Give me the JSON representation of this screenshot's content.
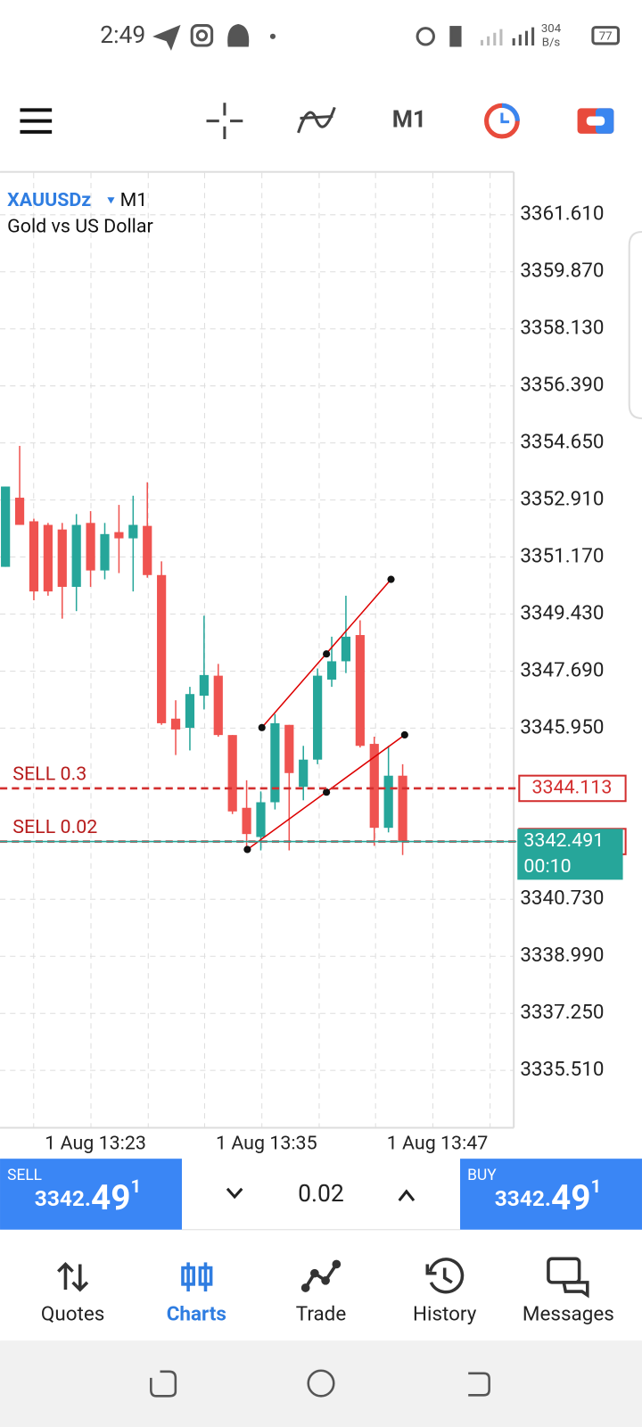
{
  "status_bar": {
    "time": "2:49",
    "speed": "304",
    "speed_unit": "B/s",
    "battery": "77"
  },
  "toolbar": {
    "timeframe": "M1"
  },
  "chart_data": {
    "type": "candlestick",
    "symbol": "XAUUSDz",
    "timeframe": "M1",
    "description": "Gold vs US Dollar",
    "open": [
      3350.87,
      3352.98,
      3352.26,
      3352.15,
      3352.01,
      3350.26,
      3352.21,
      3350.76,
      3351.93,
      3351.74,
      3352.12,
      3350.62,
      3346.24,
      3345.96,
      3346.94,
      3347.55,
      3345.74,
      3343.52,
      3342.63,
      3343.69,
      3346.05,
      3344.16,
      3344.99,
      3347.43,
      3347.99,
      3348.79,
      3345.47,
      3342.91,
      3344.5
    ],
    "high": [
      3353.32,
      3354.56,
      3352.34,
      3352.21,
      3352.21,
      3352.48,
      3352.57,
      3352.21,
      3352.76,
      3353.04,
      3353.45,
      3351.04,
      3346.8,
      3347.21,
      3349.38,
      3347.91,
      3345.74,
      3344.36,
      3344.02,
      3346.38,
      3346.05,
      3345.41,
      3347.77,
      3348.74,
      3349.99,
      3349.24,
      3345.69,
      3345.41,
      3344.85
    ],
    "low": [
      3350.87,
      3352.15,
      3349.85,
      3349.99,
      3349.29,
      3349.52,
      3350.26,
      3350.49,
      3350.68,
      3350.12,
      3350.54,
      3346.05,
      3345.13,
      3345.27,
      3346.52,
      3345.69,
      3343.33,
      3342.3,
      3342.22,
      3343.47,
      3342.22,
      3343.75,
      3344.85,
      3347.21,
      3347.63,
      3345.36,
      3342.36,
      3342.77,
      3342.08
    ],
    "close": [
      3353.32,
      3352.15,
      3350.12,
      3350.12,
      3350.26,
      3352.15,
      3350.76,
      3351.87,
      3351.74,
      3352.15,
      3350.62,
      3346.1,
      3345.91,
      3346.99,
      3347.57,
      3345.74,
      3343.41,
      3342.72,
      3343.69,
      3346.1,
      3344.58,
      3344.99,
      3347.55,
      3347.99,
      3348.74,
      3345.41,
      3342.91,
      3344.5,
      3342.49
    ],
    "up_color": "#26a69a",
    "down_color": "#ef5350",
    "ylim": [
      3333.76,
      3362.89
    ],
    "yticks": [
      {
        "value": 3361.61,
        "label": "3361.610"
      },
      {
        "value": 3359.87,
        "label": "3359.870"
      },
      {
        "value": 3358.13,
        "label": "3358.130"
      },
      {
        "value": 3356.39,
        "label": "3356.390"
      },
      {
        "value": 3354.65,
        "label": "3354.650"
      },
      {
        "value": 3352.91,
        "label": "3352.910"
      },
      {
        "value": 3351.17,
        "label": "3351.170"
      },
      {
        "value": 3349.43,
        "label": "3349.430"
      },
      {
        "value": 3347.69,
        "label": "3347.690"
      },
      {
        "value": 3345.95,
        "label": "3345.950"
      },
      {
        "value": 3340.73,
        "label": "3340.730"
      },
      {
        "value": 3338.99,
        "label": "3338.990"
      },
      {
        "value": 3337.25,
        "label": "3337.250"
      },
      {
        "value": 3335.51,
        "label": "3335.510"
      }
    ],
    "x_labels": [
      "1 Aug 13:23",
      "1 Aug 13:35",
      "1 Aug 13:47"
    ],
    "grid": true,
    "orders": [
      {
        "label": "SELL 0.3",
        "price": 3344.113
      },
      {
        "label": "SELL 0.02",
        "price": 3342.491
      }
    ],
    "order_color": "#d32f2f",
    "bid": 3342.491,
    "bid_timer": "00:10",
    "bid_color": "#26a69a"
  },
  "trade_bar": {
    "sell": {
      "label": "SELL",
      "price_main": "3342.",
      "price_big": "49",
      "price_sup": "1"
    },
    "volume": "0.02",
    "buy": {
      "label": "BUY",
      "price_main": "3342.",
      "price_big": "49",
      "price_sup": "1"
    }
  },
  "nav": {
    "items": [
      "Quotes",
      "Charts",
      "Trade",
      "History",
      "Messages"
    ],
    "active_index": 1
  }
}
